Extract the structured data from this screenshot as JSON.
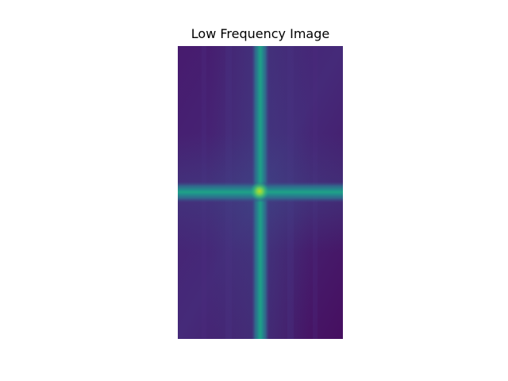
{
  "figure": {
    "title": "Low Frequency Image"
  },
  "image": {
    "colormap": "viridis",
    "colors": {
      "background": "#440f5e",
      "glow": "#3b4f8a",
      "band": "#2b8c8d",
      "core": "#1fa187",
      "peak": "#7fd34e"
    }
  }
}
